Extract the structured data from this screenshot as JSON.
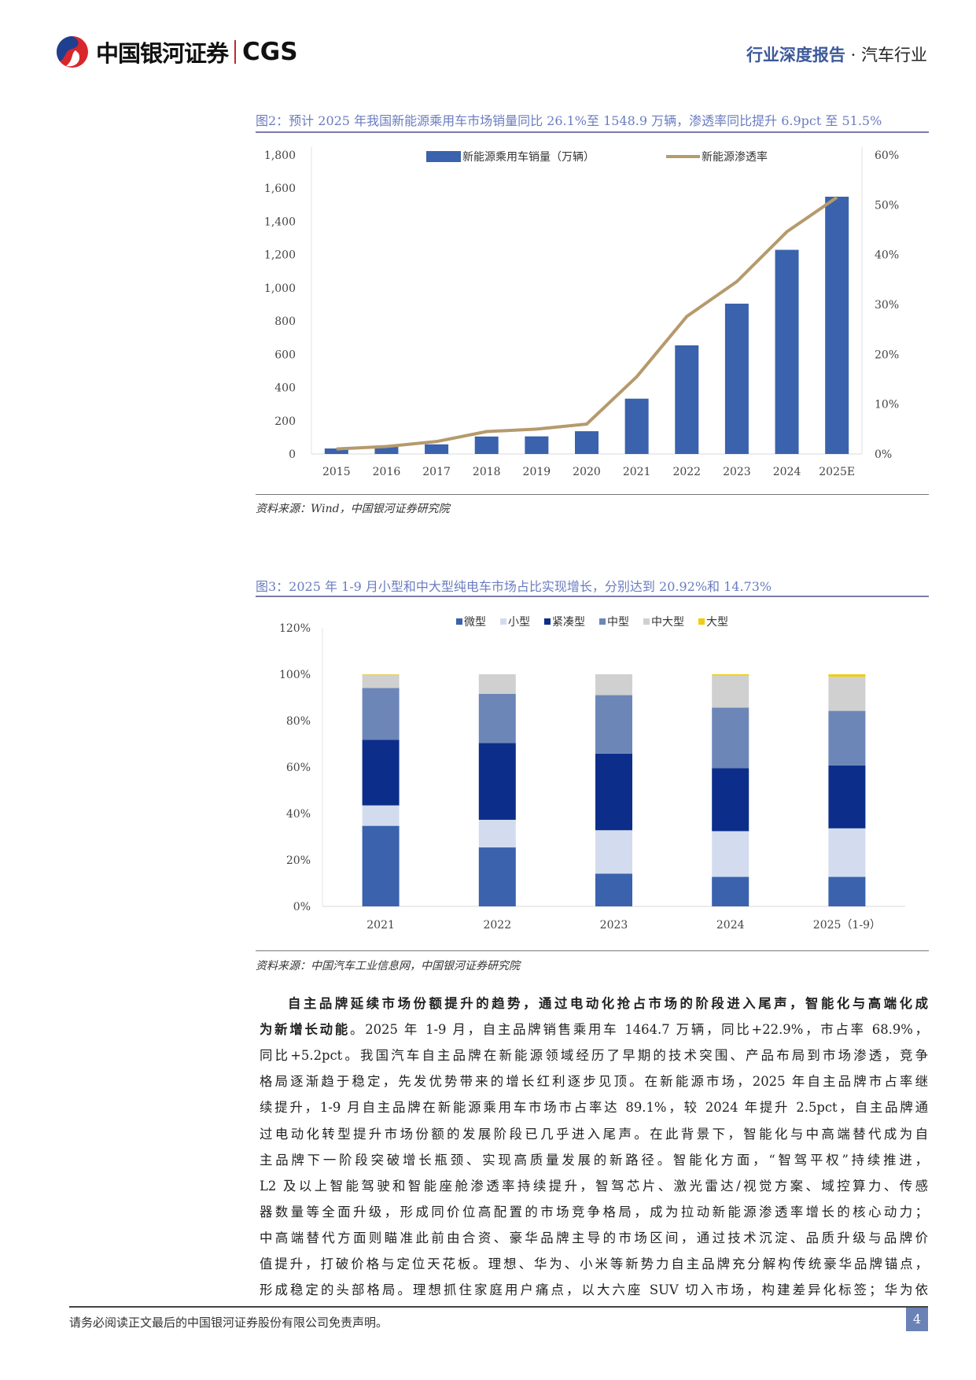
{
  "header": {
    "company": "中国银河证券",
    "brand": "CGS",
    "report_type": "行业深度报告",
    "dot": "·",
    "industry": "汽车行业"
  },
  "figure2": {
    "caption": "图2：预计 2025 年我国新能源乘用车市场销量同比 26.1%至 1548.9 万辆，渗透率同比提升 6.9pct 至 51.5%",
    "source": "资料来源：Wind，中国银河证券研究院"
  },
  "figure3": {
    "caption": "图3：2025 年 1-9 月小型和中大型纯电车市场占比实现增长，分别达到 20.92%和 14.73%",
    "source": "资料来源：中国汽车工业信息网，中国银河证券研究院"
  },
  "chart_data": [
    {
      "type": "bar+line",
      "categories": [
        "2015",
        "2016",
        "2017",
        "2018",
        "2019",
        "2020",
        "2021",
        "2022",
        "2023",
        "2024",
        "2025E"
      ],
      "series": [
        {
          "name": "新能源乘用车销量（万辆）",
          "type": "bar",
          "axis": "left",
          "color": "#3a62ad",
          "values": [
            33,
            50,
            58,
            105,
            106,
            137,
            333,
            654,
            905,
            1229,
            1548.9
          ]
        },
        {
          "name": "新能源渗透率",
          "type": "line",
          "axis": "right",
          "color": "#b59a6c",
          "values": [
            1.0,
            1.5,
            2.5,
            4.5,
            5.0,
            6.0,
            15.5,
            27.6,
            34.6,
            44.6,
            51.5
          ]
        }
      ],
      "left_axis": {
        "ylim": [
          0,
          1800
        ],
        "ticks": [
          "0",
          "200",
          "400",
          "600",
          "800",
          "1,000",
          "1,200",
          "1,400",
          "1,600",
          "1,800"
        ]
      },
      "right_axis": {
        "ylim": [
          0,
          60
        ],
        "unit": "%",
        "ticks": [
          "0%",
          "10%",
          "20%",
          "30%",
          "40%",
          "50%",
          "60%"
        ]
      },
      "legend": "top",
      "grid": false
    },
    {
      "type": "stacked-bar",
      "categories": [
        "2021",
        "2022",
        "2023",
        "2024",
        "2025（1-9）"
      ],
      "series": [
        {
          "name": "微型",
          "color": "#3a62ad",
          "values": [
            34.7,
            25.4,
            14.1,
            12.7,
            12.7
          ]
        },
        {
          "name": "小型",
          "color": "#d3dcee",
          "values": [
            8.8,
            11.9,
            18.7,
            19.7,
            20.92
          ]
        },
        {
          "name": "紧凑型",
          "color": "#0c2e8a",
          "values": [
            28.3,
            33.1,
            33.0,
            27.1,
            27.1
          ]
        },
        {
          "name": "中型",
          "color": "#6d86b8",
          "values": [
            22.3,
            21.2,
            25.2,
            26.1,
            23.5
          ]
        },
        {
          "name": "中大型",
          "color": "#d0d0d0",
          "values": [
            5.7,
            8.4,
            9.0,
            13.8,
            14.73
          ]
        },
        {
          "name": "大型",
          "color": "#f0cc10",
          "values": [
            0.2,
            0,
            0,
            0.6,
            1.05
          ]
        }
      ],
      "ylim": [
        0,
        120
      ],
      "unit": "%",
      "ticks": [
        "0%",
        "20%",
        "40%",
        "60%",
        "80%",
        "100%",
        "120%"
      ],
      "legend": "top",
      "grid": false
    }
  ],
  "body": {
    "lines": [
      {
        "bold": "自主品牌延续市场份额提升的趋势，通过电动化抢占市场的阶段进入尾声，智能化与高端化成",
        "text": ""
      },
      {
        "bold": "为新增长动能",
        "text": "。2025 年 1-9 月，自主品牌销售乘用车 1464.7 万辆，同比+22.9%，市占率 68.9%，"
      },
      {
        "bold": "",
        "text": "同比+5.2pct。我国汽车自主品牌在新能源领域经历了早期的技术突围、产品布局到市场渗透，竞争"
      },
      {
        "bold": "",
        "text": "格局逐渐趋于稳定，先发优势带来的增长红利逐步见顶。在新能源市场，2025 年自主品牌市占率继"
      },
      {
        "bold": "",
        "text": "续提升，1-9 月自主品牌在新能源乘用车市场市占率达 89.1%，较 2024 年提升 2.5pct，自主品牌通"
      },
      {
        "bold": "",
        "text": "过电动化转型提升市场份额的发展阶段已几乎进入尾声。在此背景下，智能化与中高端替代成为自"
      },
      {
        "bold": "",
        "text": "主品牌下一阶段突破增长瓶颈、实现高质量发展的新路径。智能化方面，“智驾平权”持续推进，"
      },
      {
        "bold": "",
        "text": "L2 及以上智能驾驶和智能座舱渗透率持续提升，智驾芯片、激光雷达/视觉方案、域控算力、传感"
      },
      {
        "bold": "",
        "text": "器数量等全面升级，形成同价位高配置的市场竞争格局，成为拉动新能源渗透率增长的核心动力；"
      },
      {
        "bold": "",
        "text": "中高端替代方面则瞄准此前由合资、豪华品牌主导的市场区间，通过技术沉淀、品质升级与品牌价"
      },
      {
        "bold": "",
        "text": "值提升，打破价格与定位天花板。理想、华为、小米等新势力自主品牌充分解构传统豪华品牌锚点，"
      },
      {
        "bold": "",
        "text": "形成稳定的头部格局。理想抓住家庭用户痛点，以大六座 SUV 切入市场，构建差异化标签；华为依"
      }
    ]
  },
  "footer": {
    "disclaimer": "请务必阅读正文最后的中国银河证券股份有限公司免责声明。",
    "page": "4"
  }
}
